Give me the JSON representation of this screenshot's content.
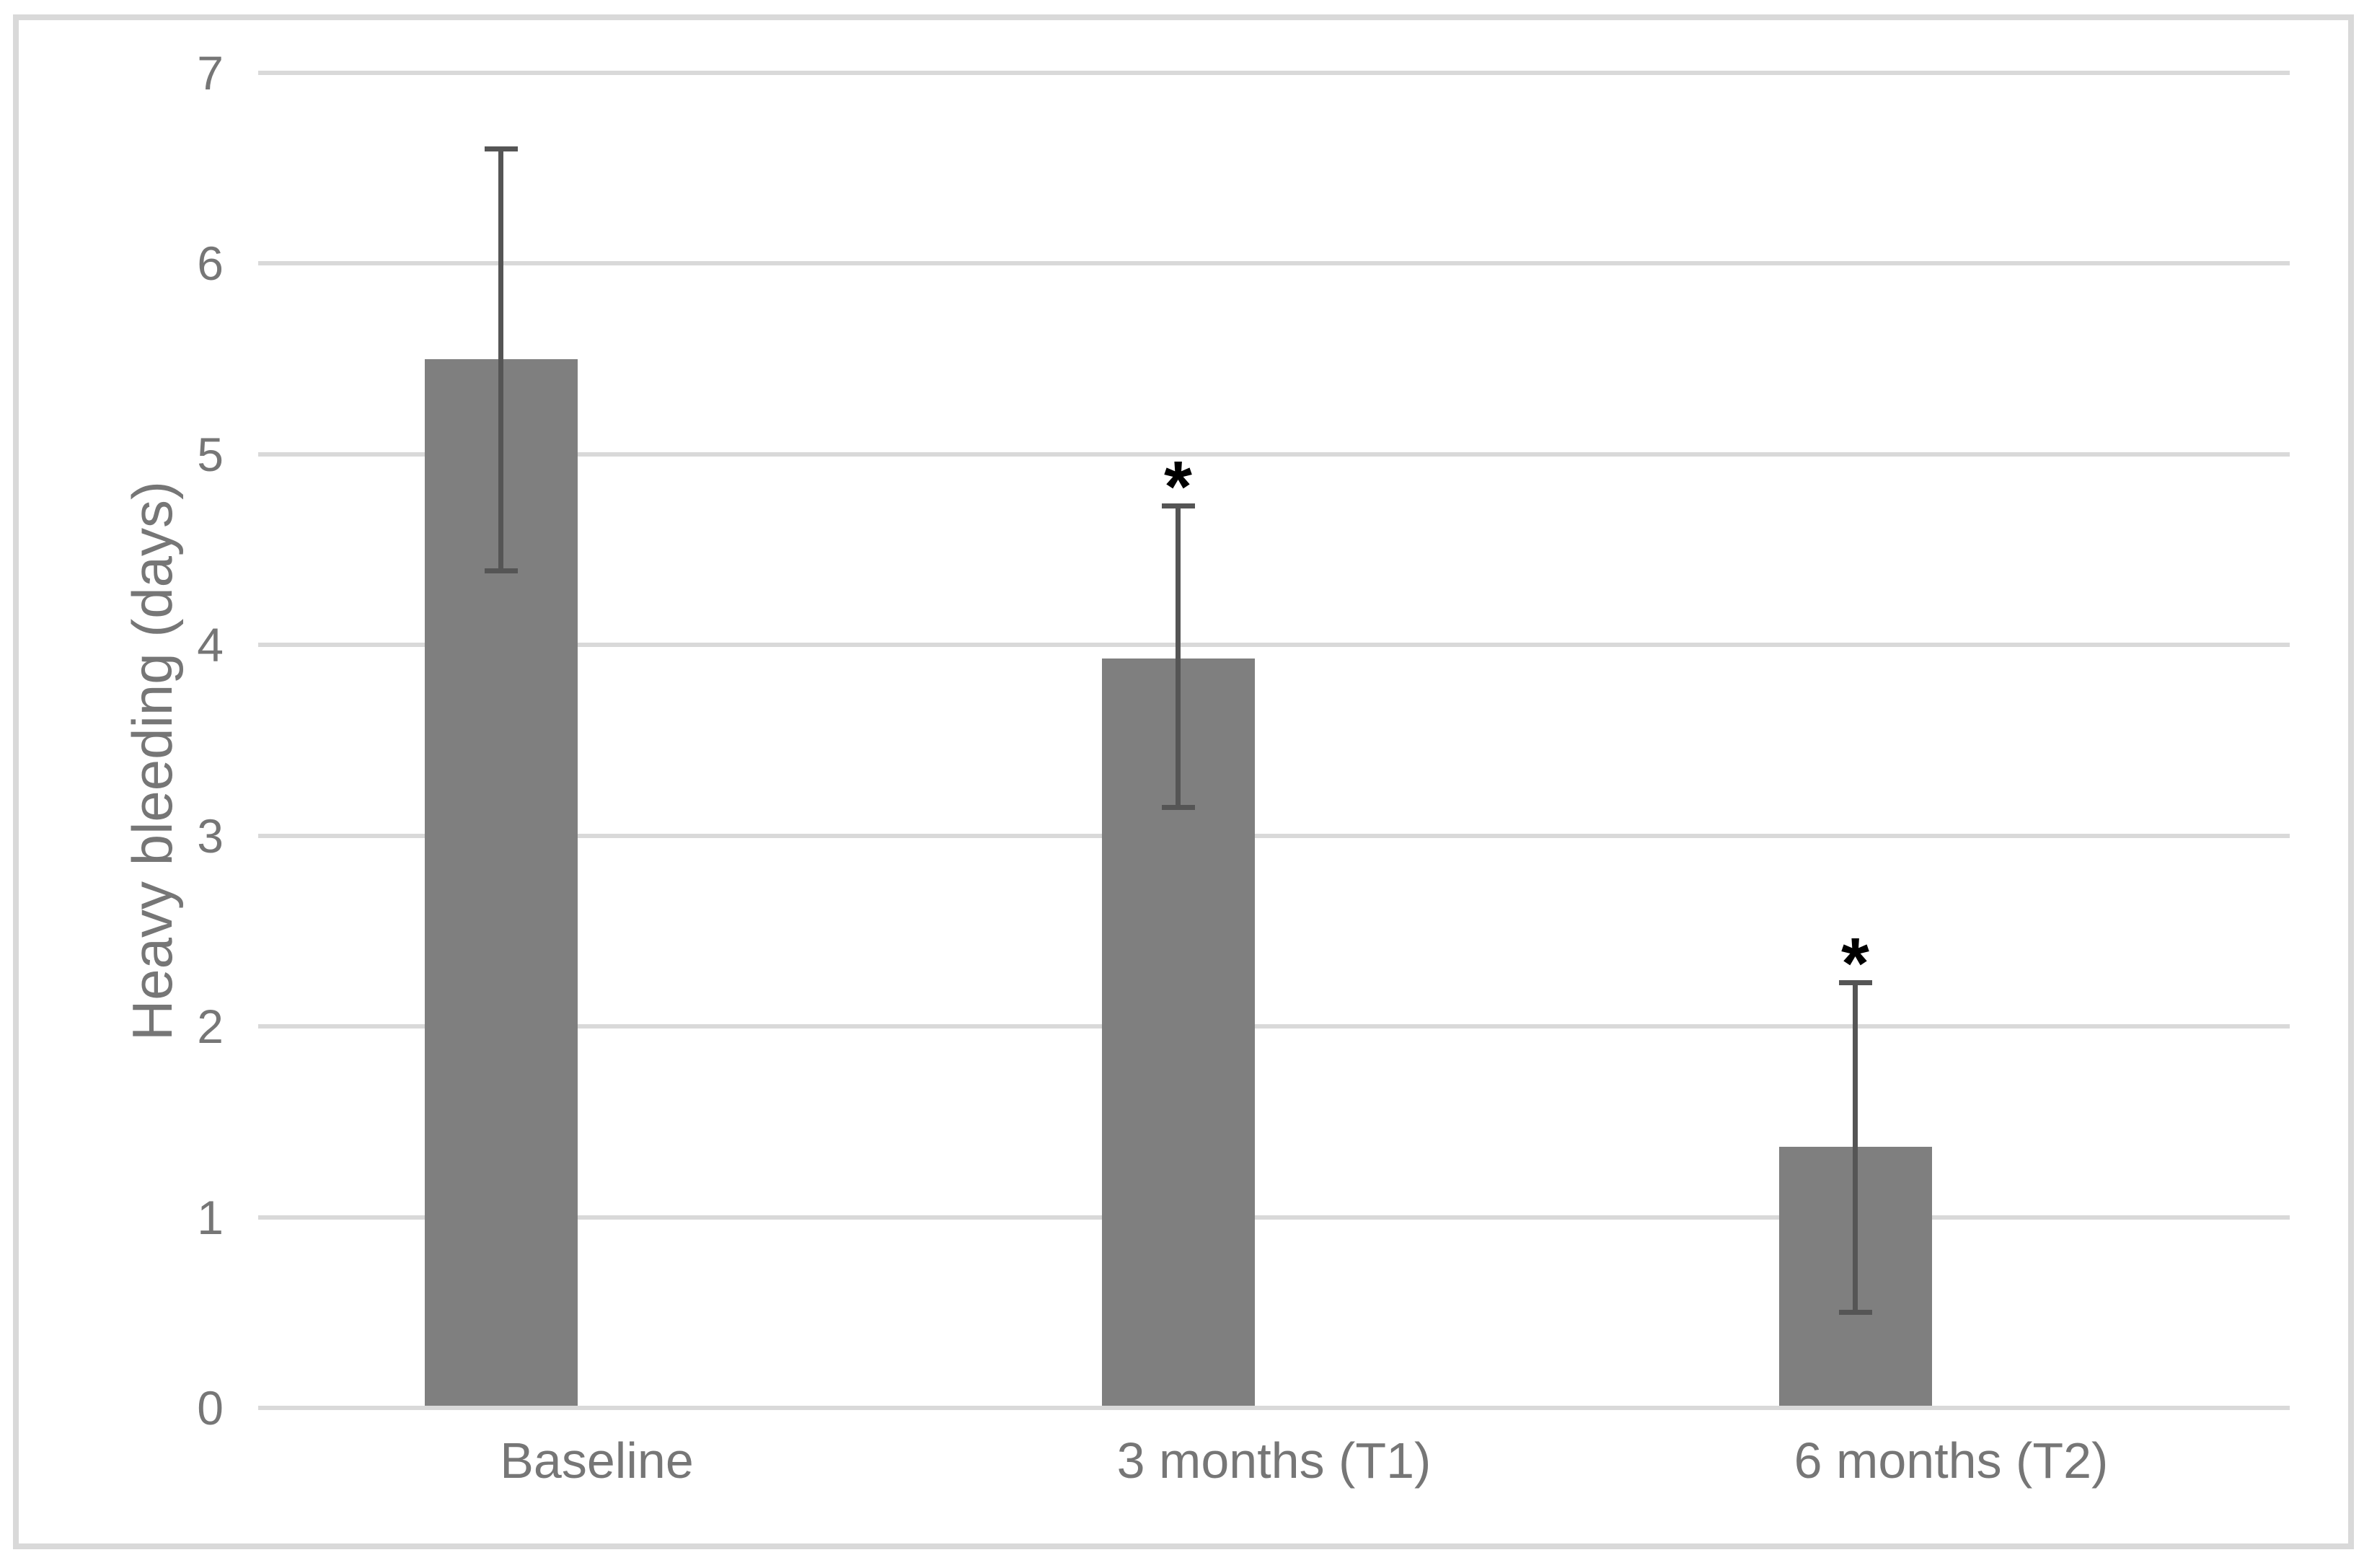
{
  "chart_data": {
    "type": "bar",
    "title": "",
    "xlabel": "",
    "ylabel": "Heavy bleeding (days)",
    "categories": [
      "Baseline",
      "3 months (T1)",
      "6 months (T2)"
    ],
    "series": [
      {
        "name": "Heavy bleeding (days)",
        "values": [
          5.5,
          3.93,
          1.37
        ],
        "error_upper": [
          6.6,
          4.73,
          2.23
        ],
        "error_lower": [
          4.39,
          3.15,
          0.5
        ],
        "significance": [
          "",
          "*",
          "*"
        ]
      }
    ],
    "ylim": [
      0,
      7
    ],
    "yticks": [
      0,
      1,
      2,
      3,
      4,
      5,
      6,
      7
    ],
    "grid": true,
    "legend": false,
    "colors": {
      "bar_fill": "#7f7f7f",
      "error_bar": "#555555",
      "gridline": "#d9d9d9",
      "frame_border": "#d9d9d9",
      "axis_text": "#767676",
      "significance": "#000000",
      "background": "#ffffff"
    }
  }
}
